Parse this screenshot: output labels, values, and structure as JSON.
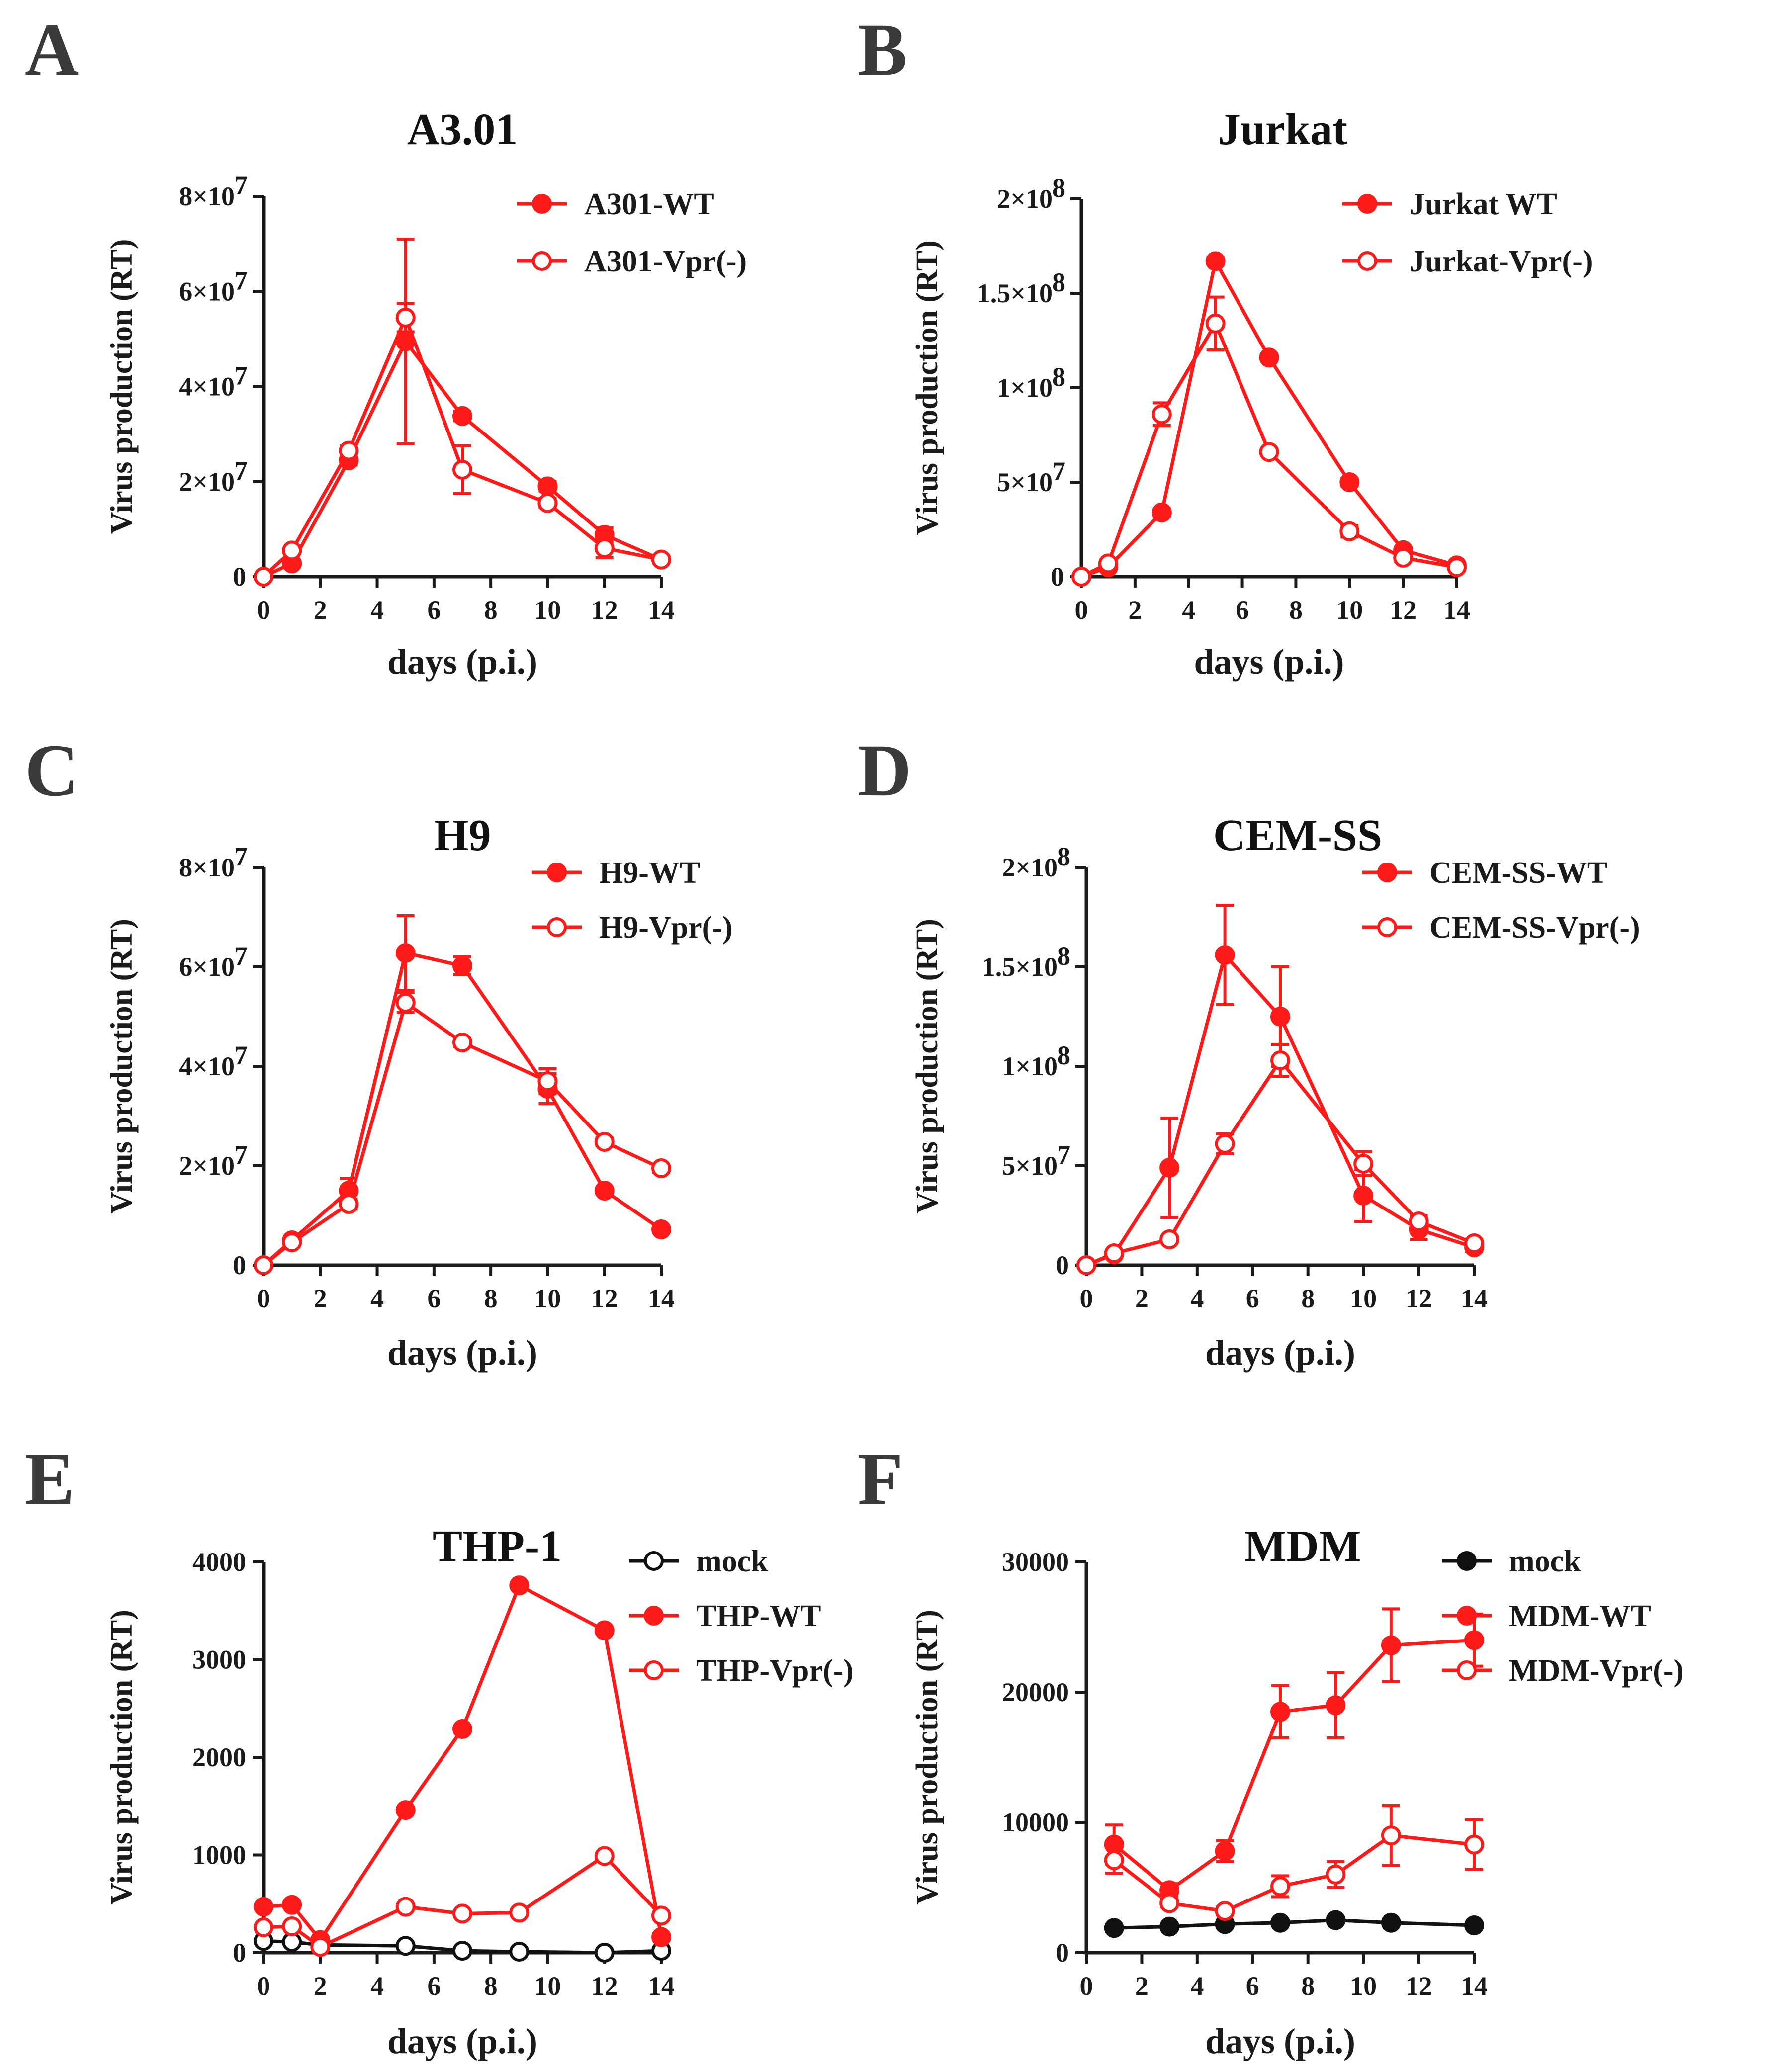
{
  "chart_data": [
    {
      "panel": "A",
      "type": "line",
      "title": "A3.01",
      "xlabel": "days (p.i.)",
      "ylabel": "Virus production (RT)",
      "xlim": [
        0,
        14
      ],
      "ylim": [
        0,
        80000000
      ],
      "xticks": [
        0,
        2,
        4,
        6,
        8,
        10,
        12,
        14
      ],
      "yticks": [
        {
          "value": 0,
          "mant": "0",
          "exp": ""
        },
        {
          "value": 20000000,
          "mant": "2×10",
          "exp": "7"
        },
        {
          "value": 40000000,
          "mant": "4×10",
          "exp": "7"
        },
        {
          "value": 60000000,
          "mant": "6×10",
          "exp": "7"
        },
        {
          "value": 80000000,
          "mant": "8×10",
          "exp": "7"
        }
      ],
      "series": [
        {
          "name": "A301-WT",
          "color": "#ff1a1a",
          "filled": true,
          "x": [
            0,
            1,
            3,
            5,
            7,
            10,
            12,
            14
          ],
          "values": [
            0,
            2800000,
            24500000,
            49500000,
            33800000,
            19000000,
            8800000,
            3600000
          ],
          "err": [
            0,
            600000,
            1000000,
            21500000,
            1000000,
            1000000,
            1500000,
            500000
          ]
        },
        {
          "name": "A301-Vpr(-)",
          "color": "#ff1a1a",
          "filled": false,
          "x": [
            0,
            1,
            3,
            5,
            7,
            10,
            12,
            14
          ],
          "values": [
            0,
            5500000,
            26500000,
            54500000,
            22500000,
            15500000,
            6000000,
            3600000
          ],
          "err": [
            0,
            600000,
            1000000,
            3000000,
            5000000,
            1000000,
            2000000,
            500000
          ]
        }
      ]
    },
    {
      "panel": "B",
      "type": "line",
      "title": "Jurkat",
      "xlabel": "days (p.i.)",
      "ylabel": "Virus production (RT)",
      "xlim": [
        0,
        14
      ],
      "ylim": [
        0,
        200000000
      ],
      "xticks": [
        0,
        2,
        4,
        6,
        8,
        10,
        12,
        14
      ],
      "yticks": [
        {
          "value": 0,
          "mant": "0",
          "exp": ""
        },
        {
          "value": 50000000,
          "mant": "5×10",
          "exp": "7"
        },
        {
          "value": 100000000,
          "mant": "1×10",
          "exp": "8"
        },
        {
          "value": 150000000,
          "mant": "1.5×10",
          "exp": "8"
        },
        {
          "value": 200000000,
          "mant": "2×10",
          "exp": "8"
        }
      ],
      "series": [
        {
          "name": "Jurkat WT",
          "color": "#ff1a1a",
          "filled": true,
          "x": [
            0,
            1,
            3,
            5,
            7,
            10,
            12,
            14
          ],
          "values": [
            0,
            5000000,
            34000000,
            167000000,
            116000000,
            50000000,
            14000000,
            6000000
          ],
          "err": [
            0,
            1000000,
            2000000,
            2000000,
            2000000,
            2000000,
            1500000,
            1000000
          ]
        },
        {
          "name": "Jurkat-Vpr(-)",
          "color": "#ff1a1a",
          "filled": false,
          "x": [
            0,
            1,
            3,
            5,
            7,
            10,
            12,
            14
          ],
          "values": [
            0,
            7000000,
            86000000,
            134000000,
            66000000,
            24000000,
            10000000,
            5000000
          ],
          "err": [
            0,
            1500000,
            6000000,
            14000000,
            2000000,
            3000000,
            2000000,
            1000000
          ]
        }
      ]
    },
    {
      "panel": "C",
      "type": "line",
      "title": "H9",
      "xlabel": "days (p.i.)",
      "ylabel": "Virus production (RT)",
      "xlim": [
        0,
        14
      ],
      "ylim": [
        0,
        80000000
      ],
      "xticks": [
        0,
        2,
        4,
        6,
        8,
        10,
        12,
        14
      ],
      "yticks": [
        {
          "value": 0,
          "mant": "0",
          "exp": ""
        },
        {
          "value": 20000000,
          "mant": "2×10",
          "exp": "7"
        },
        {
          "value": 40000000,
          "mant": "4×10",
          "exp": "7"
        },
        {
          "value": 60000000,
          "mant": "6×10",
          "exp": "7"
        },
        {
          "value": 80000000,
          "mant": "8×10",
          "exp": "7"
        }
      ],
      "series": [
        {
          "name": "H9-WT",
          "color": "#ff1a1a",
          "filled": true,
          "x": [
            0,
            1,
            3,
            5,
            7,
            10,
            12,
            14
          ],
          "values": [
            0,
            5000000,
            15000000,
            62800000,
            60200000,
            35500000,
            15000000,
            7200000
          ],
          "err": [
            0,
            800000,
            2500000,
            7500000,
            1800000,
            3000000,
            500000,
            500000
          ]
        },
        {
          "name": "H9-Vpr(-)",
          "color": "#ff1a1a",
          "filled": false,
          "x": [
            0,
            1,
            3,
            5,
            7,
            10,
            12,
            14
          ],
          "values": [
            0,
            4600000,
            12300000,
            52800000,
            44800000,
            37000000,
            24800000,
            19500000
          ],
          "err": [
            0,
            600000,
            1000000,
            2000000,
            800000,
            2500000,
            800000,
            800000
          ]
        }
      ]
    },
    {
      "panel": "D",
      "type": "line",
      "title": "CEM-SS",
      "xlabel": "days (p.i.)",
      "ylabel": "Virus production (RT)",
      "xlim": [
        0,
        14
      ],
      "ylim": [
        0,
        200000000
      ],
      "xticks": [
        0,
        2,
        4,
        6,
        8,
        10,
        12,
        14
      ],
      "yticks": [
        {
          "value": 0,
          "mant": "0",
          "exp": ""
        },
        {
          "value": 50000000,
          "mant": "5×10",
          "exp": "7"
        },
        {
          "value": 100000000,
          "mant": "1×10",
          "exp": "8"
        },
        {
          "value": 150000000,
          "mant": "1.5×10",
          "exp": "8"
        },
        {
          "value": 200000000,
          "mant": "2×10",
          "exp": "8"
        }
      ],
      "series": [
        {
          "name": "CEM-SS-WT",
          "color": "#ff1a1a",
          "filled": true,
          "x": [
            0,
            1,
            3,
            5,
            7,
            10,
            12,
            14
          ],
          "values": [
            0,
            5500000,
            49000000,
            156000000,
            125000000,
            35000000,
            18000000,
            9000000
          ],
          "err": [
            0,
            1000000,
            25000000,
            25000000,
            25000000,
            13000000,
            5000000,
            2000000
          ]
        },
        {
          "name": "CEM-SS-Vpr(-)",
          "color": "#ff1a1a",
          "filled": false,
          "x": [
            0,
            1,
            3,
            5,
            7,
            10,
            12,
            14
          ],
          "values": [
            0,
            6000000,
            13000000,
            61000000,
            103000000,
            51000000,
            22000000,
            11000000
          ],
          "err": [
            0,
            1000000,
            1500000,
            5000000,
            8000000,
            6000000,
            3000000,
            2000000
          ]
        }
      ]
    },
    {
      "panel": "E",
      "type": "line",
      "title": "THP-1",
      "xlabel": "days (p.i.)",
      "ylabel": "Virus production (RT)",
      "xlim": [
        0,
        14
      ],
      "ylim": [
        0,
        4000
      ],
      "xticks": [
        0,
        2,
        4,
        6,
        8,
        10,
        12,
        14
      ],
      "yticks": [
        {
          "value": 0,
          "mant": "0",
          "exp": ""
        },
        {
          "value": 1000,
          "mant": "1000",
          "exp": ""
        },
        {
          "value": 2000,
          "mant": "2000",
          "exp": ""
        },
        {
          "value": 3000,
          "mant": "3000",
          "exp": ""
        },
        {
          "value": 4000,
          "mant": "4000",
          "exp": ""
        }
      ],
      "series": [
        {
          "name": "mock",
          "color": "#111111",
          "filled": false,
          "x": [
            0,
            1,
            2,
            5,
            7,
            9,
            12,
            14
          ],
          "values": [
            120,
            110,
            80,
            70,
            20,
            10,
            0,
            20
          ],
          "err": [
            0,
            0,
            0,
            0,
            0,
            0,
            0,
            0
          ]
        },
        {
          "name": "THP-WT",
          "color": "#ff1a1a",
          "filled": true,
          "x": [
            0,
            1,
            2,
            5,
            7,
            9,
            12,
            14
          ],
          "values": [
            470,
            490,
            130,
            1460,
            2290,
            3760,
            3300,
            160
          ],
          "err": [
            0,
            0,
            0,
            0,
            0,
            0,
            0,
            0
          ]
        },
        {
          "name": "THP-Vpr(-)",
          "color": "#ff1a1a",
          "filled": false,
          "x": [
            0,
            1,
            2,
            5,
            7,
            9,
            12,
            14
          ],
          "values": [
            260,
            270,
            60,
            470,
            400,
            410,
            990,
            380
          ],
          "err": [
            0,
            0,
            0,
            0,
            0,
            0,
            0,
            0
          ]
        }
      ]
    },
    {
      "panel": "F",
      "type": "line",
      "title": "MDM",
      "xlabel": "days (p.i.)",
      "ylabel": "Virus production (RT)",
      "xlim": [
        0,
        14
      ],
      "ylim": [
        0,
        30000
      ],
      "xticks": [
        0,
        2,
        4,
        6,
        8,
        10,
        12,
        14
      ],
      "yticks": [
        {
          "value": 0,
          "mant": "0",
          "exp": ""
        },
        {
          "value": 10000,
          "mant": "10000",
          "exp": ""
        },
        {
          "value": 20000,
          "mant": "20000",
          "exp": ""
        },
        {
          "value": 30000,
          "mant": "30000",
          "exp": ""
        }
      ],
      "series": [
        {
          "name": "mock",
          "color": "#111111",
          "filled": true,
          "x": [
            1,
            3,
            5,
            7,
            9,
            11,
            14
          ],
          "values": [
            1900,
            2000,
            2200,
            2300,
            2500,
            2300,
            2100
          ],
          "err": [
            0,
            0,
            0,
            0,
            0,
            0,
            0
          ]
        },
        {
          "name": "MDM-WT",
          "color": "#ff1a1a",
          "filled": true,
          "x": [
            1,
            3,
            5,
            7,
            9,
            11,
            14
          ],
          "values": [
            8300,
            4800,
            7800,
            18500,
            19000,
            23600,
            24000
          ],
          "err": [
            1500,
            500,
            800,
            2000,
            2500,
            2800,
            2000
          ]
        },
        {
          "name": "MDM-Vpr(-)",
          "color": "#ff1a1a",
          "filled": false,
          "x": [
            1,
            3,
            5,
            7,
            9,
            11,
            14
          ],
          "values": [
            7100,
            3800,
            3200,
            5100,
            6000,
            9000,
            8300
          ],
          "err": [
            1000,
            300,
            300,
            800,
            1000,
            2300,
            1900
          ]
        }
      ]
    }
  ]
}
